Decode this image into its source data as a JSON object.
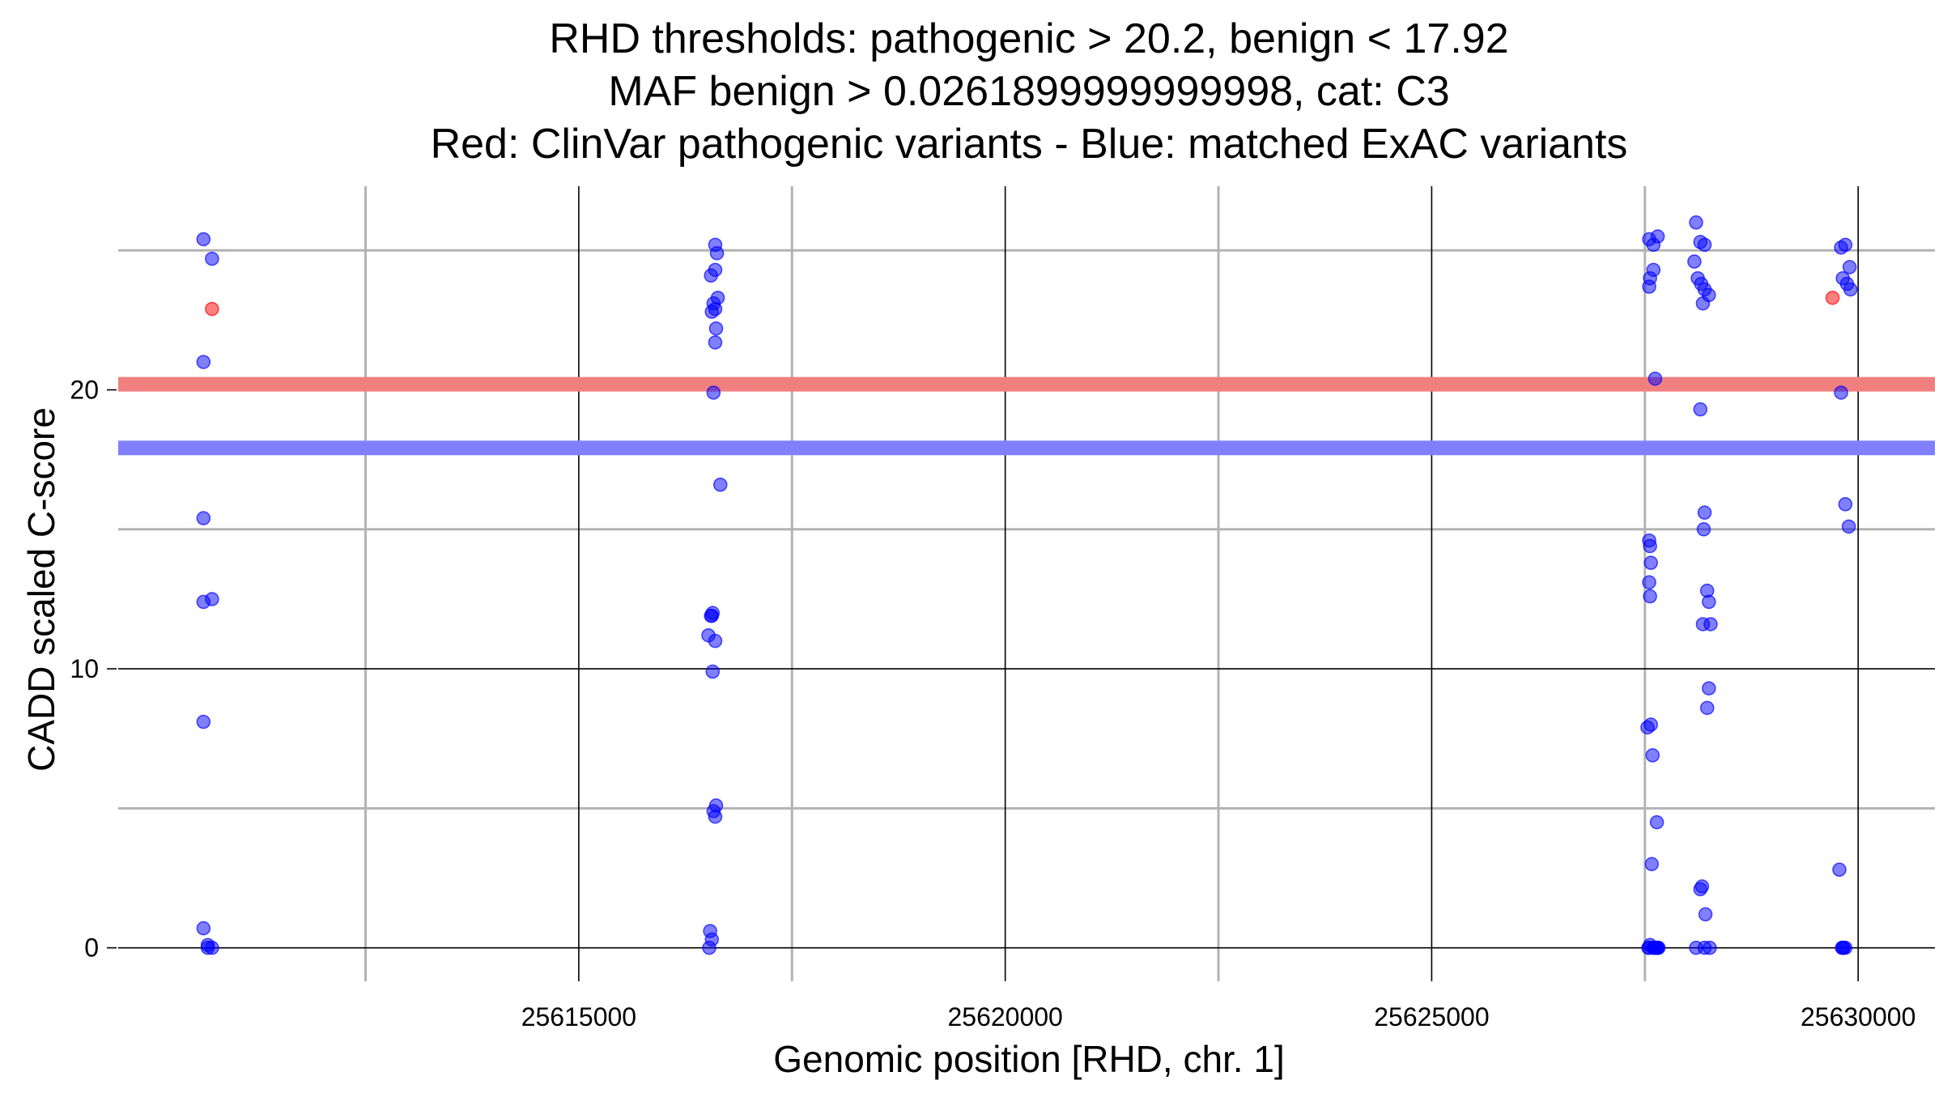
{
  "chart_data": {
    "type": "scatter",
    "title_lines": [
      "RHD thresholds: pathogenic > 20.2, benign < 17.92",
      "MAF benign > 0.0261899999999998, cat: C3",
      "Red: ClinVar pathogenic variants - Blue: matched ExAC variants"
    ],
    "xlabel": "Genomic position [RHD, chr. 1]",
    "ylabel": "CADD scaled C-score",
    "xlim": [
      25609600,
      25630900
    ],
    "ylim": [
      -1.2,
      27.3
    ],
    "x_ticks": [
      25615000,
      25620000,
      25625000,
      25630000
    ],
    "x_minor_ticks": [
      25612500,
      25617500,
      25622500,
      25627500
    ],
    "y_ticks": [
      0,
      10,
      20
    ],
    "y_minor_ticks": [
      5,
      15,
      25
    ],
    "grid": true,
    "thresholds": [
      {
        "name": "pathogenic",
        "value": 20.2,
        "color": "#f08080"
      },
      {
        "name": "benign",
        "value": 17.92,
        "color": "#8080ff"
      }
    ],
    "colors": {
      "pathogenic": "#ff0000",
      "matched": "#0000ff",
      "major_grid": "#000000",
      "minor_grid": "#b3b3b3"
    },
    "series": [
      {
        "name": "ClinVar pathogenic variants",
        "color": "#ff0000",
        "x": [
          25610700,
          25629700
        ],
        "y": [
          22.9,
          23.3
        ]
      },
      {
        "name": "matched ExAC variants",
        "color": "#0000ff",
        "x": [
          25610600,
          25610700,
          25610600,
          25610600,
          25610600,
          25610700,
          25610600,
          25610600,
          25610700,
          25610650,
          25610650,
          25616600,
          25616620,
          25616550,
          25616600,
          25616630,
          25616580,
          25616600,
          25616560,
          25616610,
          25616600,
          25616580,
          25616660,
          25616570,
          25616550,
          25616560,
          25616520,
          25616600,
          25616570,
          25616610,
          25616580,
          25616600,
          25616540,
          25616560,
          25616530,
          25627550,
          25627600,
          25627650,
          25627560,
          25627550,
          25627600,
          25627620,
          25627550,
          25627560,
          25627570,
          25627550,
          25627560,
          25627570,
          25627530,
          25627590,
          25627640,
          25627580,
          25627560,
          25627600,
          25627620,
          25627640,
          25627650,
          25627660,
          25627540,
          25627550,
          25627600,
          25627640,
          25628100,
          25628150,
          25628200,
          25628080,
          25628120,
          25628160,
          25628200,
          25628250,
          25628180,
          25628150,
          25628200,
          25628190,
          25628230,
          25628250,
          25628270,
          25628180,
          25628250,
          25628230,
          25628150,
          25628170,
          25628210,
          25628260,
          25628100,
          25628200,
          25629800,
          25629850,
          25629900,
          25629820,
          25629870,
          25629910,
          25629800,
          25629850,
          25629890,
          25629780,
          25629820,
          25629810,
          25629850,
          25629830
        ],
        "y": [
          25.4,
          24.7,
          21.0,
          15.4,
          12.4,
          12.5,
          8.1,
          0.7,
          0.0,
          0.1,
          0.0,
          25.2,
          24.9,
          24.1,
          24.3,
          23.3,
          23.1,
          22.9,
          22.8,
          22.2,
          21.7,
          19.9,
          16.6,
          12.0,
          11.9,
          11.9,
          11.2,
          11.0,
          9.9,
          5.1,
          4.9,
          4.7,
          0.6,
          0.3,
          0.0,
          25.4,
          25.2,
          25.5,
          24.0,
          23.7,
          24.3,
          20.4,
          14.6,
          14.4,
          13.8,
          13.1,
          12.6,
          8.0,
          7.9,
          6.9,
          4.5,
          3.0,
          0.1,
          0.0,
          0.0,
          0.0,
          0.0,
          0.0,
          0.0,
          0.0,
          0.0,
          0.0,
          26.0,
          25.3,
          25.2,
          24.6,
          24.0,
          23.8,
          23.6,
          23.4,
          23.1,
          19.3,
          15.6,
          15.0,
          12.8,
          12.4,
          11.6,
          11.6,
          9.3,
          8.6,
          2.1,
          2.2,
          1.2,
          0.0,
          0.0,
          0.0,
          25.1,
          25.2,
          24.4,
          24.0,
          23.8,
          23.6,
          19.9,
          15.9,
          15.1,
          2.8,
          0.0,
          0.0,
          0.0,
          0.0
        ]
      }
    ]
  }
}
